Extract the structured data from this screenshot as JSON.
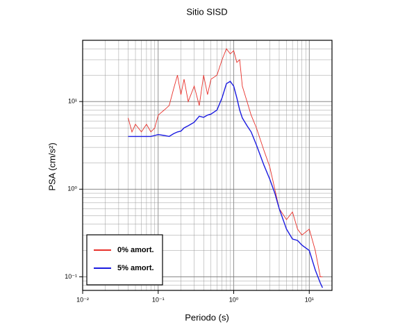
{
  "chart_data": {
    "type": "line",
    "title": "Sitio SISD",
    "xlabel": "Periodo (s)",
    "ylabel": "PSA (cm/s²)",
    "log_x": true,
    "log_y": true,
    "grid": true,
    "legend": "lower left",
    "xlim": [
      0.01,
      20
    ],
    "ylim": [
      0.07,
      50
    ],
    "xticks": [
      {
        "value": 0.01,
        "label": "10⁻²"
      },
      {
        "value": 0.1,
        "label": "10⁻¹"
      },
      {
        "value": 1,
        "label": "10⁰"
      },
      {
        "value": 10,
        "label": "10¹"
      }
    ],
    "yticks": [
      {
        "value": 0.1,
        "label": "10⁻¹"
      },
      {
        "value": 1,
        "label": "10⁰"
      },
      {
        "value": 10,
        "label": "10¹"
      }
    ],
    "x": [
      0.04,
      0.045,
      0.05,
      0.06,
      0.07,
      0.08,
      0.09,
      0.1,
      0.12,
      0.14,
      0.16,
      0.18,
      0.2,
      0.22,
      0.25,
      0.3,
      0.35,
      0.4,
      0.45,
      0.5,
      0.6,
      0.7,
      0.8,
      0.9,
      1.0,
      1.1,
      1.2,
      1.3,
      1.5,
      1.7,
      2.0,
      2.5,
      3,
      3.5,
      4,
      5,
      6,
      7,
      8,
      10,
      12,
      14,
      15
    ],
    "series": [
      {
        "name": "0% amort.",
        "color": "#e8302a",
        "values": [
          6.5,
          4.5,
          5.5,
          4.5,
          5.5,
          4.5,
          5.0,
          7.0,
          8.0,
          9.0,
          14,
          20,
          12,
          18,
          10,
          15,
          9,
          20,
          12,
          18,
          20,
          30,
          40,
          35,
          38,
          28,
          30,
          15,
          10,
          7,
          5,
          2.8,
          1.8,
          1.0,
          0.6,
          0.45,
          0.55,
          0.35,
          0.3,
          0.35,
          0.2,
          0.1,
          0.1
        ]
      },
      {
        "name": "5% amort.",
        "color": "#1a1ae0",
        "values": [
          4.0,
          4.0,
          4.0,
          4.0,
          4.0,
          4.0,
          4.1,
          4.2,
          4.1,
          4.0,
          4.3,
          4.5,
          4.6,
          5.0,
          5.3,
          5.8,
          6.8,
          6.6,
          7.0,
          7.2,
          8.0,
          11,
          16,
          17,
          15,
          11,
          8,
          6.5,
          5.3,
          4.5,
          3.2,
          1.9,
          1.3,
          0.9,
          0.6,
          0.35,
          0.27,
          0.26,
          0.23,
          0.2,
          0.12,
          0.085,
          0.075
        ]
      }
    ]
  }
}
